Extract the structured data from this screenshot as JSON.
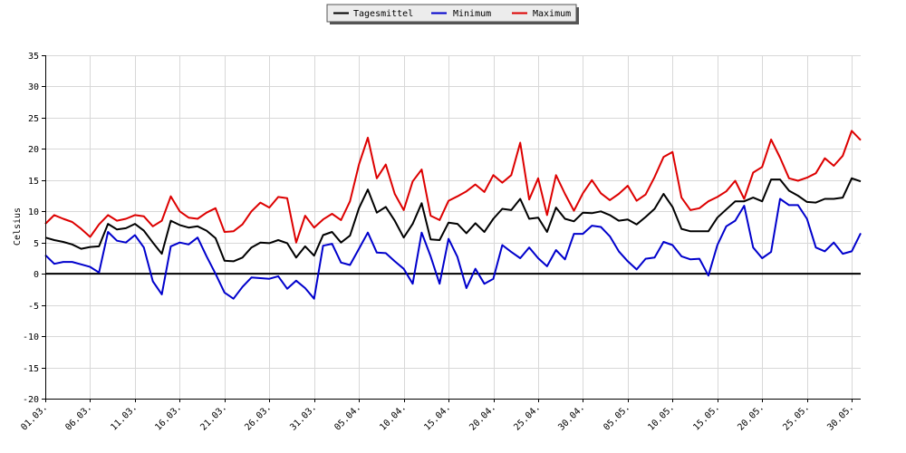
{
  "chart_data": {
    "type": "line",
    "ylabel": "Celsius",
    "ylim": [
      -20,
      35
    ],
    "yticks": [
      35,
      30,
      25,
      20,
      15,
      10,
      5,
      0,
      -5,
      -10,
      -15,
      -20
    ],
    "xtick_labels": [
      "01.03.",
      "06.03.",
      "11.03.",
      "16.03.",
      "21.03.",
      "26.03.",
      "31.03.",
      "05.04.",
      "10.04.",
      "15.04.",
      "20.04.",
      "25.04.",
      "30.04.",
      "05.05.",
      "10.05.",
      "15.05.",
      "20.05.",
      "25.05.",
      "30.05."
    ],
    "xtick_step_days": 5,
    "grid": true,
    "legend_position": "top-center",
    "zero_line": true,
    "series": [
      {
        "name": "Tagesmittel",
        "color": "#000000",
        "values": [
          5.8,
          5.4,
          5.1,
          4.7,
          4.0,
          4.3,
          4.4,
          8.0,
          7.1,
          7.3,
          8.0,
          6.9,
          5.0,
          3.2,
          8.5,
          7.8,
          7.4,
          7.6,
          6.9,
          5.7,
          2.1,
          2.0,
          2.6,
          4.2,
          5.0,
          4.9,
          5.4,
          4.9,
          2.6,
          4.4,
          2.9,
          6.2,
          6.7,
          5.0,
          6.1,
          10.5,
          13.5,
          9.8,
          10.7,
          8.5,
          5.8,
          8.0,
          11.3,
          5.5,
          5.4,
          8.2,
          8.0,
          6.5,
          8.1,
          6.7,
          8.8,
          10.4,
          10.2,
          12.0,
          8.8,
          9.0,
          6.7,
          10.6,
          8.8,
          8.4,
          9.8,
          9.7,
          10.0,
          9.4,
          8.5,
          8.7,
          7.9,
          9.1,
          10.4,
          12.8,
          10.7,
          7.2,
          6.8,
          6.8,
          6.8,
          9.0,
          10.3,
          11.6,
          11.6,
          12.2,
          11.6,
          15.1,
          15.1,
          13.3,
          12.5,
          11.5,
          11.4,
          12.0,
          12.0,
          12.2,
          15.3,
          14.8
        ]
      },
      {
        "name": "Minimum",
        "color": "#0000cc",
        "values": [
          3.0,
          1.6,
          1.9,
          1.9,
          1.5,
          1.1,
          0.2,
          6.7,
          5.3,
          5.0,
          6.2,
          4.2,
          -1.2,
          -3.3,
          4.4,
          5.0,
          4.7,
          5.8,
          2.8,
          0.0,
          -3.0,
          -4.0,
          -2.1,
          -0.6,
          -0.7,
          -0.8,
          -0.4,
          -2.4,
          -1.1,
          -2.3,
          -4.0,
          4.5,
          4.8,
          1.8,
          1.4,
          4.0,
          6.6,
          3.4,
          3.3,
          2.0,
          0.8,
          -1.6,
          6.6,
          2.8,
          -1.6,
          5.6,
          2.7,
          -2.3,
          0.8,
          -1.6,
          -0.8,
          4.6,
          3.5,
          2.5,
          4.2,
          2.5,
          1.2,
          3.8,
          2.3,
          6.4,
          6.4,
          7.7,
          7.5,
          6.0,
          3.6,
          2.0,
          0.7,
          2.4,
          2.6,
          5.1,
          4.6,
          2.8,
          2.3,
          2.4,
          -0.3,
          4.6,
          7.6,
          8.5,
          10.9,
          4.2,
          2.5,
          3.5,
          12.0,
          11.0,
          11.0,
          8.8,
          4.2,
          3.6,
          5.0,
          3.2,
          3.6,
          6.5
        ]
      },
      {
        "name": "Maximum",
        "color": "#dd0000",
        "values": [
          8.0,
          9.4,
          8.8,
          8.3,
          7.2,
          5.9,
          7.9,
          9.4,
          8.5,
          8.8,
          9.4,
          9.2,
          7.6,
          8.5,
          12.4,
          10.0,
          9.0,
          8.8,
          9.8,
          10.5,
          6.7,
          6.8,
          7.9,
          10.0,
          11.4,
          10.6,
          12.3,
          12.1,
          5.0,
          9.3,
          7.4,
          8.7,
          9.6,
          8.6,
          11.6,
          17.5,
          21.8,
          15.3,
          17.5,
          12.8,
          10.2,
          14.8,
          16.7,
          9.3,
          8.6,
          11.7,
          12.4,
          13.2,
          14.3,
          13.1,
          15.8,
          14.6,
          15.8,
          21.0,
          11.9,
          15.3,
          9.4,
          15.8,
          12.8,
          10.1,
          12.9,
          15.0,
          12.9,
          11.8,
          12.8,
          14.1,
          11.7,
          12.7,
          15.5,
          18.7,
          19.5,
          12.2,
          10.2,
          10.5,
          11.6,
          12.3,
          13.2,
          14.9,
          12.0,
          16.2,
          17.1,
          21.5,
          18.6,
          15.3,
          14.9,
          15.4,
          16.1,
          18.5,
          17.3,
          18.9,
          22.9,
          21.4
        ]
      }
    ]
  }
}
